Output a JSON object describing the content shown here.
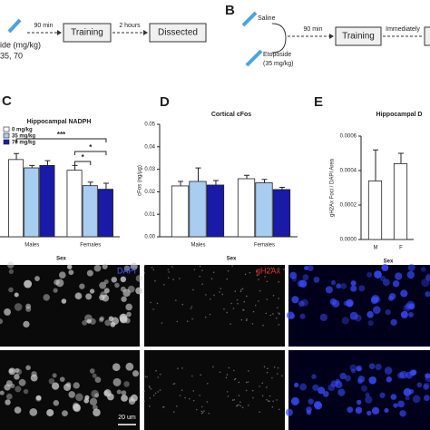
{
  "panel_a": {
    "dose_label": "ide (mg/kg)",
    "doses": "35, 70",
    "step1_time": "90 min",
    "step1": "Training",
    "step2_time": "2 hours",
    "step2": "Dissected"
  },
  "panel_b": {
    "label": "B",
    "saline": "Saline",
    "drug": "Etoposide",
    "drug_dose": "(35 mg/kg)",
    "step1_time": "90 min",
    "step1": "Training",
    "step2_time": "Immediately"
  },
  "charts": [
    {
      "label": "C",
      "type": "bar",
      "title": "Hippocampal NADPH",
      "x_label": "Sex",
      "categories": [
        "Males",
        "Females"
      ],
      "series": [
        {
          "name": "0 mg/kg",
          "color": "#ffffff",
          "values": [
            0.65,
            0.56
          ],
          "errors": [
            0.05,
            0.04
          ]
        },
        {
          "name": "35 mg/kg",
          "color": "#a9cdf0",
          "values": [
            0.58,
            0.43
          ],
          "errors": [
            0.02,
            0.03
          ]
        },
        {
          "name": "70 mg/kg",
          "color": "#1a1aa8",
          "values": [
            0.6,
            0.4
          ],
          "errors": [
            0.04,
            0.05
          ]
        }
      ],
      "ylim": [
        0,
        1
      ],
      "annotations": [
        "***",
        "*",
        "*"
      ]
    },
    {
      "label": "D",
      "type": "bar",
      "title": "Cortical cFos",
      "y_label": "cFos (ng/µg)",
      "x_label": "Sex",
      "categories": [
        "Males",
        "Females"
      ],
      "series": [
        {
          "color": "#ffffff",
          "values": [
            0.0226,
            0.0258
          ],
          "errors": [
            0.002,
            0.0015
          ]
        },
        {
          "color": "#a9cdf0",
          "values": [
            0.0246,
            0.024
          ],
          "errors": [
            0.006,
            0.0015
          ]
        },
        {
          "color": "#1a1aa8",
          "values": [
            0.023,
            0.021
          ],
          "errors": [
            0.002,
            0.001
          ]
        }
      ],
      "ylim": [
        0,
        0.05
      ],
      "yticks": [
        {
          "value": 0,
          "label": "0.00"
        },
        0.01,
        0.02,
        0.03,
        0.04,
        0.05
      ]
    },
    {
      "label": "E",
      "type": "bar",
      "title": "Hippocampal D",
      "y_label": "gH2Ax Foci / DAPI Area",
      "x_label": "Sex",
      "categories": [
        "M",
        "F"
      ],
      "series": [
        {
          "color": "#ffffff",
          "values": [
            0.00034,
            0.00044
          ],
          "errors": [
            0.00018,
            6e-05
          ]
        }
      ],
      "ylim": [
        0,
        0.0006
      ],
      "yticks": [
        {
          "value": 0,
          "label": "0.0000"
        },
        0.0002,
        0.0004,
        0.0006
      ]
    }
  ],
  "images": {
    "channels": [
      "DAPI",
      "gH2Ax"
    ],
    "scale_bar": "20 um"
  }
}
